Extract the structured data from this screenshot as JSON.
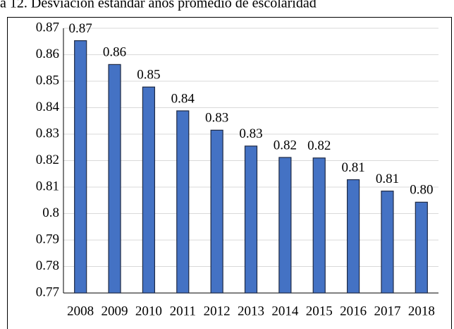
{
  "chart_data": {
    "type": "bar",
    "title": "a 12. Desviación estándar años promedio de escolaridad",
    "categories": [
      "2008",
      "2009",
      "2010",
      "2011",
      "2012",
      "2013",
      "2014",
      "2015",
      "2016",
      "2017",
      "2018"
    ],
    "values": [
      0.8653,
      0.8563,
      0.8478,
      0.8388,
      0.8315,
      0.8255,
      0.8212,
      0.821,
      0.8128,
      0.8085,
      0.8043
    ],
    "value_labels": [
      "0.87",
      "0.86",
      "0.85",
      "0.84",
      "0.83",
      "0.83",
      "0.82",
      "0.82",
      "0.81",
      "0.81",
      "0.80"
    ],
    "color": "#4472c4",
    "ylim": [
      0.77,
      0.87
    ],
    "yticks": [
      0.77,
      0.78,
      0.79,
      0.8,
      0.81,
      0.82,
      0.83,
      0.84,
      0.85,
      0.86,
      0.87
    ],
    "grid": true
  }
}
